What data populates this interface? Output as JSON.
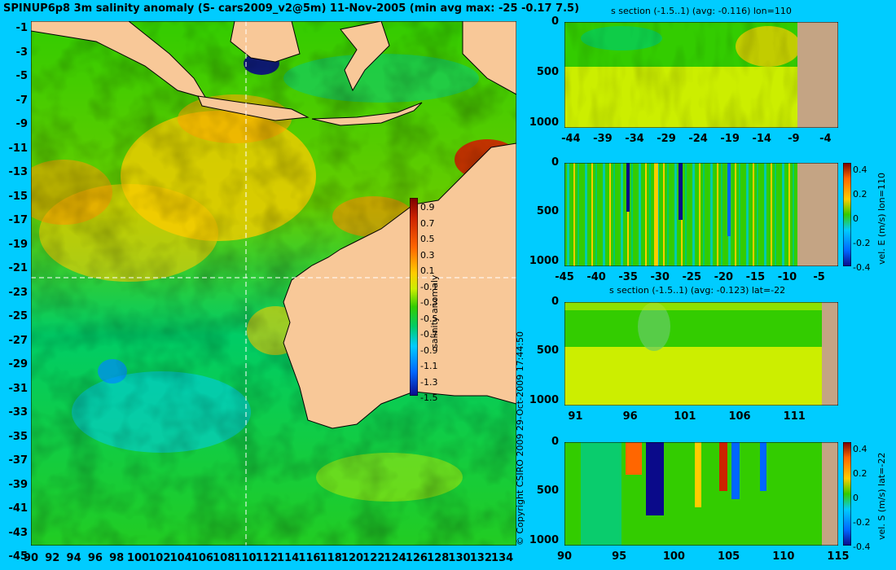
{
  "title": "SPINUP6p8 3m salinity anomaly (S- cars2009_v2@5m) 11-Nov-2005 (min avg max: -25 -0.17 7.5)",
  "copyright": "© Copyright CSIRO 2009   29-Oct-2009 17:44:50",
  "colors": {
    "background": "#00ccff",
    "land": "#f8c898",
    "section_land": "#c4a484",
    "colormap": [
      "#0a0a8a",
      "#0066ff",
      "#00ccff",
      "#00cc66",
      "#33cc00",
      "#ccee00",
      "#ffcc00",
      "#ff6600",
      "#cc2200",
      "#7a0000"
    ]
  },
  "chart_data": [
    {
      "id": "map",
      "type": "heatmap",
      "title": "SPINUP6p8 3m salinity anomaly (S- cars2009_v2@5m) 11-Nov-2005 (min avg max: -25 -0.17 7.5)",
      "x_ticks": [
        "90",
        "92",
        "94",
        "96",
        "98",
        "100",
        "102",
        "104",
        "106",
        "108",
        "110",
        "112",
        "114",
        "116",
        "118",
        "120",
        "122",
        "124",
        "126",
        "128",
        "130",
        "132",
        "134"
      ],
      "y_ticks": [
        "-1",
        "-3",
        "-5",
        "-7",
        "-9",
        "-11",
        "-13",
        "-15",
        "-17",
        "-19",
        "-21",
        "-23",
        "-25",
        "-27",
        "-29",
        "-31",
        "-33",
        "-35",
        "-37",
        "-39",
        "-41",
        "-43",
        "-45"
      ],
      "xlim": [
        90,
        135
      ],
      "ylim": [
        -45,
        0
      ],
      "section_lon": 110,
      "section_lat": -22,
      "colorbar": {
        "label": "salinity anomaly",
        "ticks": [
          "0.9",
          "0.7",
          "0.5",
          "0.3",
          "0.1",
          "-0.1",
          "-0.3",
          "-0.5",
          "-0.7",
          "-0.9",
          "-1.1",
          "-1.3",
          "-1.5"
        ],
        "range": [
          -1.5,
          1.0
        ]
      }
    },
    {
      "id": "s_section_lon",
      "type": "heatmap",
      "title": "s section (-1.5..1) (avg: -0.116) lon=110",
      "x_ticks": [
        "-44",
        "-39",
        "-34",
        "-29",
        "-24",
        "-19",
        "-14",
        "-9",
        "-4"
      ],
      "y_ticks": [
        "0",
        "500",
        "1000"
      ],
      "xlim": [
        -45,
        -2
      ],
      "ylim": [
        1050,
        0
      ]
    },
    {
      "id": "velE_section_lon",
      "type": "heatmap",
      "title": "",
      "x_ticks": [
        "-45",
        "-40",
        "-35",
        "-30",
        "-25",
        "-20",
        "-15",
        "-10",
        "-5"
      ],
      "y_ticks": [
        "0",
        "500",
        "1000"
      ],
      "xlim": [
        -45,
        -2
      ],
      "ylim": [
        1050,
        0
      ],
      "colorbar": {
        "label": "vel. E (m/s) lon=110",
        "ticks": [
          "0.4",
          "0.2",
          "0",
          "-0.2",
          "-0.4"
        ],
        "range": [
          -0.45,
          0.45
        ]
      }
    },
    {
      "id": "s_section_lat",
      "type": "heatmap",
      "title": "s section (-1.5..1) (avg: -0.123) lat=-22",
      "x_ticks": [
        "91",
        "96",
        "101",
        "106",
        "111"
      ],
      "y_ticks": [
        "0",
        "500",
        "1000"
      ],
      "xlim": [
        90,
        115
      ],
      "ylim": [
        1050,
        0
      ]
    },
    {
      "id": "velS_section_lat",
      "type": "heatmap",
      "title": "",
      "x_ticks": [
        "90",
        "95",
        "100",
        "105",
        "110",
        "115"
      ],
      "y_ticks": [
        "0",
        "500",
        "1000"
      ],
      "xlim": [
        90,
        115
      ],
      "ylim": [
        1050,
        0
      ],
      "colorbar": {
        "label": "vel. S (m/s) lat=-22",
        "ticks": [
          "0.4",
          "0.2",
          "0",
          "-0.2",
          "-0.4"
        ],
        "range": [
          -0.45,
          0.45
        ]
      }
    }
  ]
}
